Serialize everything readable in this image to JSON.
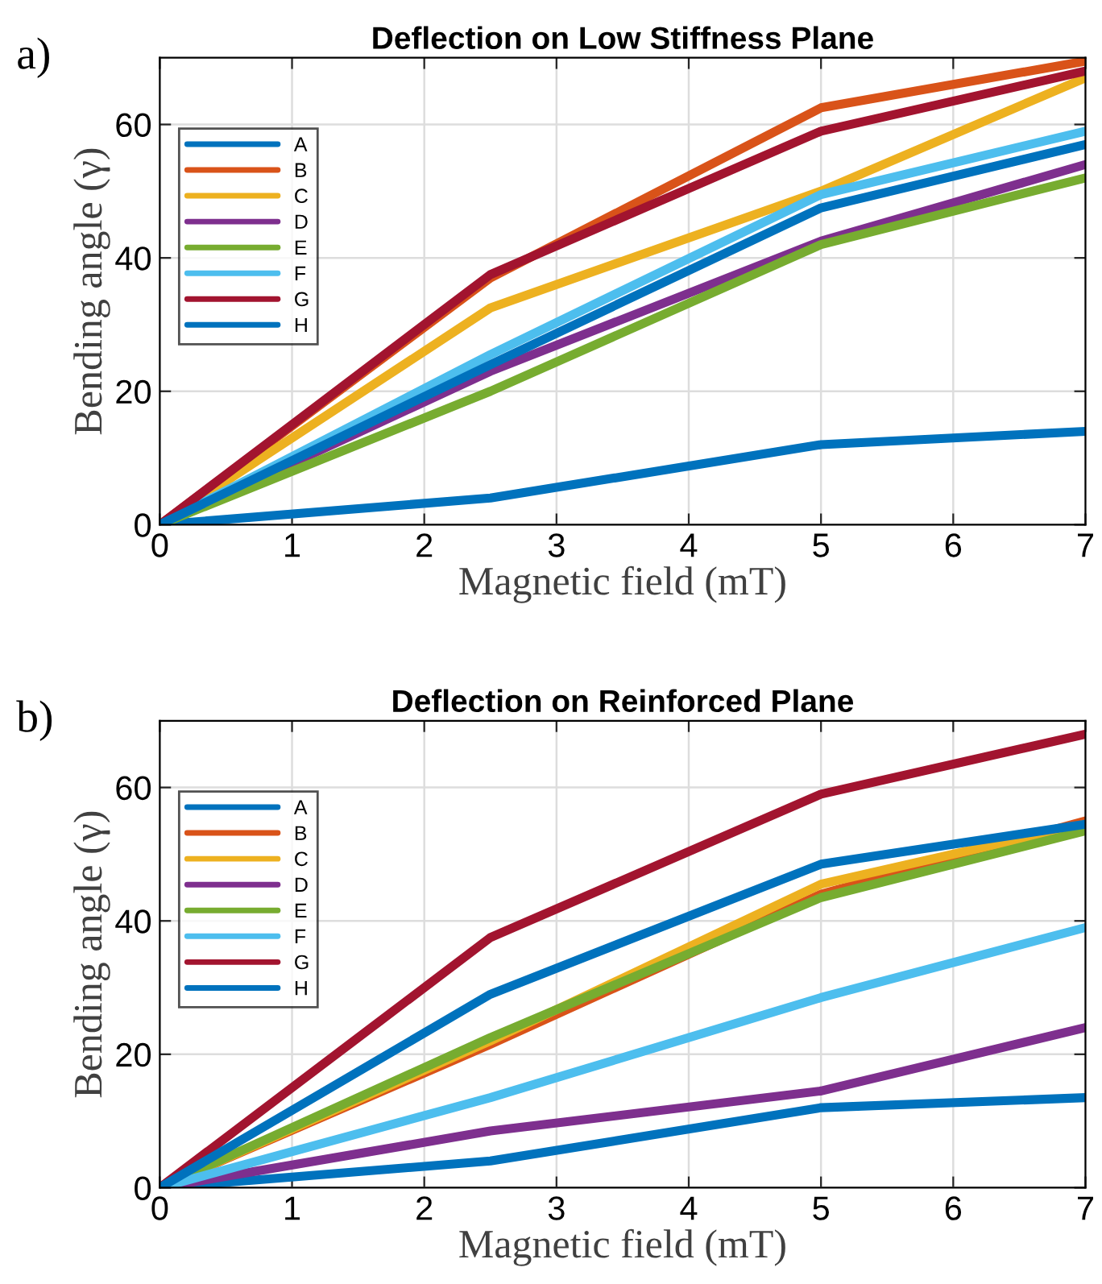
{
  "chart_data": [
    {
      "type": "line",
      "title": "Deflection on Low Stiffness Plane",
      "xlabel": "Magnetic field (mT)",
      "ylabel": "Bending angle (γ)",
      "annotations": [
        "a)"
      ],
      "x": [
        0,
        2.5,
        5,
        7
      ],
      "xlim": [
        0,
        7
      ],
      "ylim": [
        0,
        70
      ],
      "xticks": [
        0,
        1,
        2,
        3,
        4,
        5,
        6,
        7
      ],
      "yticks": [
        0,
        20,
        40,
        60
      ],
      "grid": true,
      "legend": "top left",
      "marker": "none",
      "line_style": "solid",
      "series": [
        {
          "name": "A",
          "color": "#0072bd",
          "values": [
            0,
            4,
            12,
            14
          ]
        },
        {
          "name": "B",
          "color": "#d95319",
          "values": [
            0,
            37,
            62.5,
            69.5
          ]
        },
        {
          "name": "C",
          "color": "#edb120",
          "values": [
            0,
            32.5,
            50,
            67
          ]
        },
        {
          "name": "D",
          "color": "#7e2f8e",
          "values": [
            0,
            23,
            42.5,
            54
          ]
        },
        {
          "name": "E",
          "color": "#77ac30",
          "values": [
            0,
            20,
            42,
            52
          ]
        },
        {
          "name": "F",
          "color": "#4dbeee",
          "values": [
            0,
            25.5,
            49.5,
            59
          ]
        },
        {
          "name": "G",
          "color": "#a2142f",
          "values": [
            0,
            37.5,
            59,
            68
          ]
        },
        {
          "name": "H",
          "color": "#0072bd",
          "values": [
            0,
            24,
            47.5,
            57
          ]
        }
      ]
    },
    {
      "type": "line",
      "title": "Deflection on Reinforced Plane",
      "xlabel": "Magnetic field (mT)",
      "ylabel": "Bending angle (γ)",
      "annotations": [
        "b)"
      ],
      "x": [
        0,
        2.5,
        5,
        7
      ],
      "xlim": [
        0,
        7
      ],
      "ylim": [
        0,
        70
      ],
      "xticks": [
        0,
        1,
        2,
        3,
        4,
        5,
        6,
        7
      ],
      "yticks": [
        0,
        20,
        40,
        60
      ],
      "grid": true,
      "legend": "top left",
      "marker": "none",
      "line_style": "solid",
      "series": [
        {
          "name": "A",
          "color": "#0072bd",
          "values": [
            0,
            4,
            12,
            13.5
          ]
        },
        {
          "name": "B",
          "color": "#d95319",
          "values": [
            0,
            21.5,
            44,
            55
          ]
        },
        {
          "name": "C",
          "color": "#edb120",
          "values": [
            0,
            22,
            45.5,
            54.5
          ]
        },
        {
          "name": "D",
          "color": "#7e2f8e",
          "values": [
            0,
            8.5,
            14.5,
            24
          ]
        },
        {
          "name": "E",
          "color": "#77ac30",
          "values": [
            0,
            22.5,
            43.5,
            53.5
          ]
        },
        {
          "name": "F",
          "color": "#4dbeee",
          "values": [
            0,
            13.5,
            28.5,
            39
          ]
        },
        {
          "name": "G",
          "color": "#a2142f",
          "values": [
            0,
            37.5,
            59,
            68
          ]
        },
        {
          "name": "H",
          "color": "#0072bd",
          "values": [
            0,
            29,
            48.5,
            54.5
          ]
        }
      ]
    }
  ]
}
